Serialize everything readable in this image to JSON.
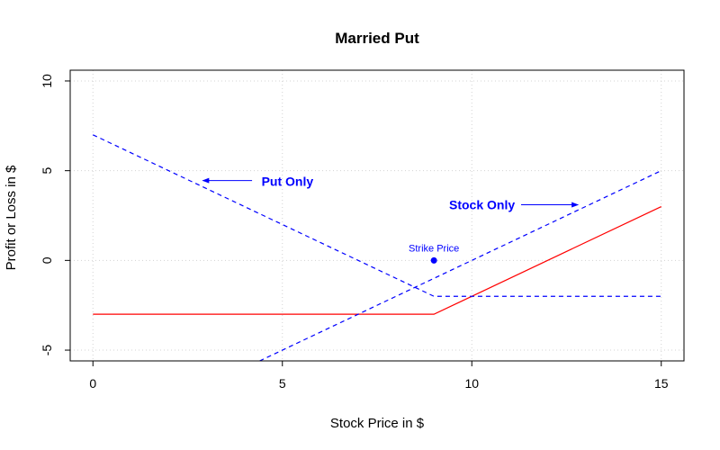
{
  "chart_data": {
    "type": "line",
    "title": "Married Put",
    "xlabel": "Stock Price in $",
    "ylabel": "Profit or Loss in $",
    "xlim": [
      -0.6,
      15.6
    ],
    "ylim": [
      -5.6,
      10.6
    ],
    "x_ticks": [
      0,
      5,
      10,
      15
    ],
    "y_ticks": [
      -5,
      0,
      5,
      10
    ],
    "grid": true,
    "grid_style": "dotted",
    "colors": {
      "married_put": "#ff0000",
      "put_only": "#0000ff",
      "stock_only": "#0000ff",
      "strike": "#0000ff"
    },
    "series": [
      {
        "key": "married_put",
        "line_style": "solid",
        "x": [
          0,
          9,
          15
        ],
        "y": [
          -3,
          -3,
          3
        ]
      },
      {
        "key": "put_only",
        "line_style": "dashed",
        "x": [
          0,
          9,
          15
        ],
        "y": [
          7,
          -2,
          -2
        ]
      },
      {
        "key": "stock_only",
        "line_style": "dashed",
        "x": [
          4.4,
          15
        ],
        "y": [
          -5.6,
          5
        ]
      }
    ],
    "annotations": [
      {
        "key": "put_only",
        "text": "Put Only",
        "x": 4.45,
        "y": 4.4,
        "arrow_from": [
          4.2,
          4.45
        ],
        "arrow_to": [
          2.9,
          4.45
        ]
      },
      {
        "key": "stock_only",
        "text": "Stock Only",
        "x": 9.4,
        "y": 3.1,
        "arrow_from": [
          11.3,
          3.1
        ],
        "arrow_to": [
          12.8,
          3.1
        ]
      }
    ],
    "point": {
      "label": "Strike Price",
      "x": 9,
      "y": 0
    }
  }
}
